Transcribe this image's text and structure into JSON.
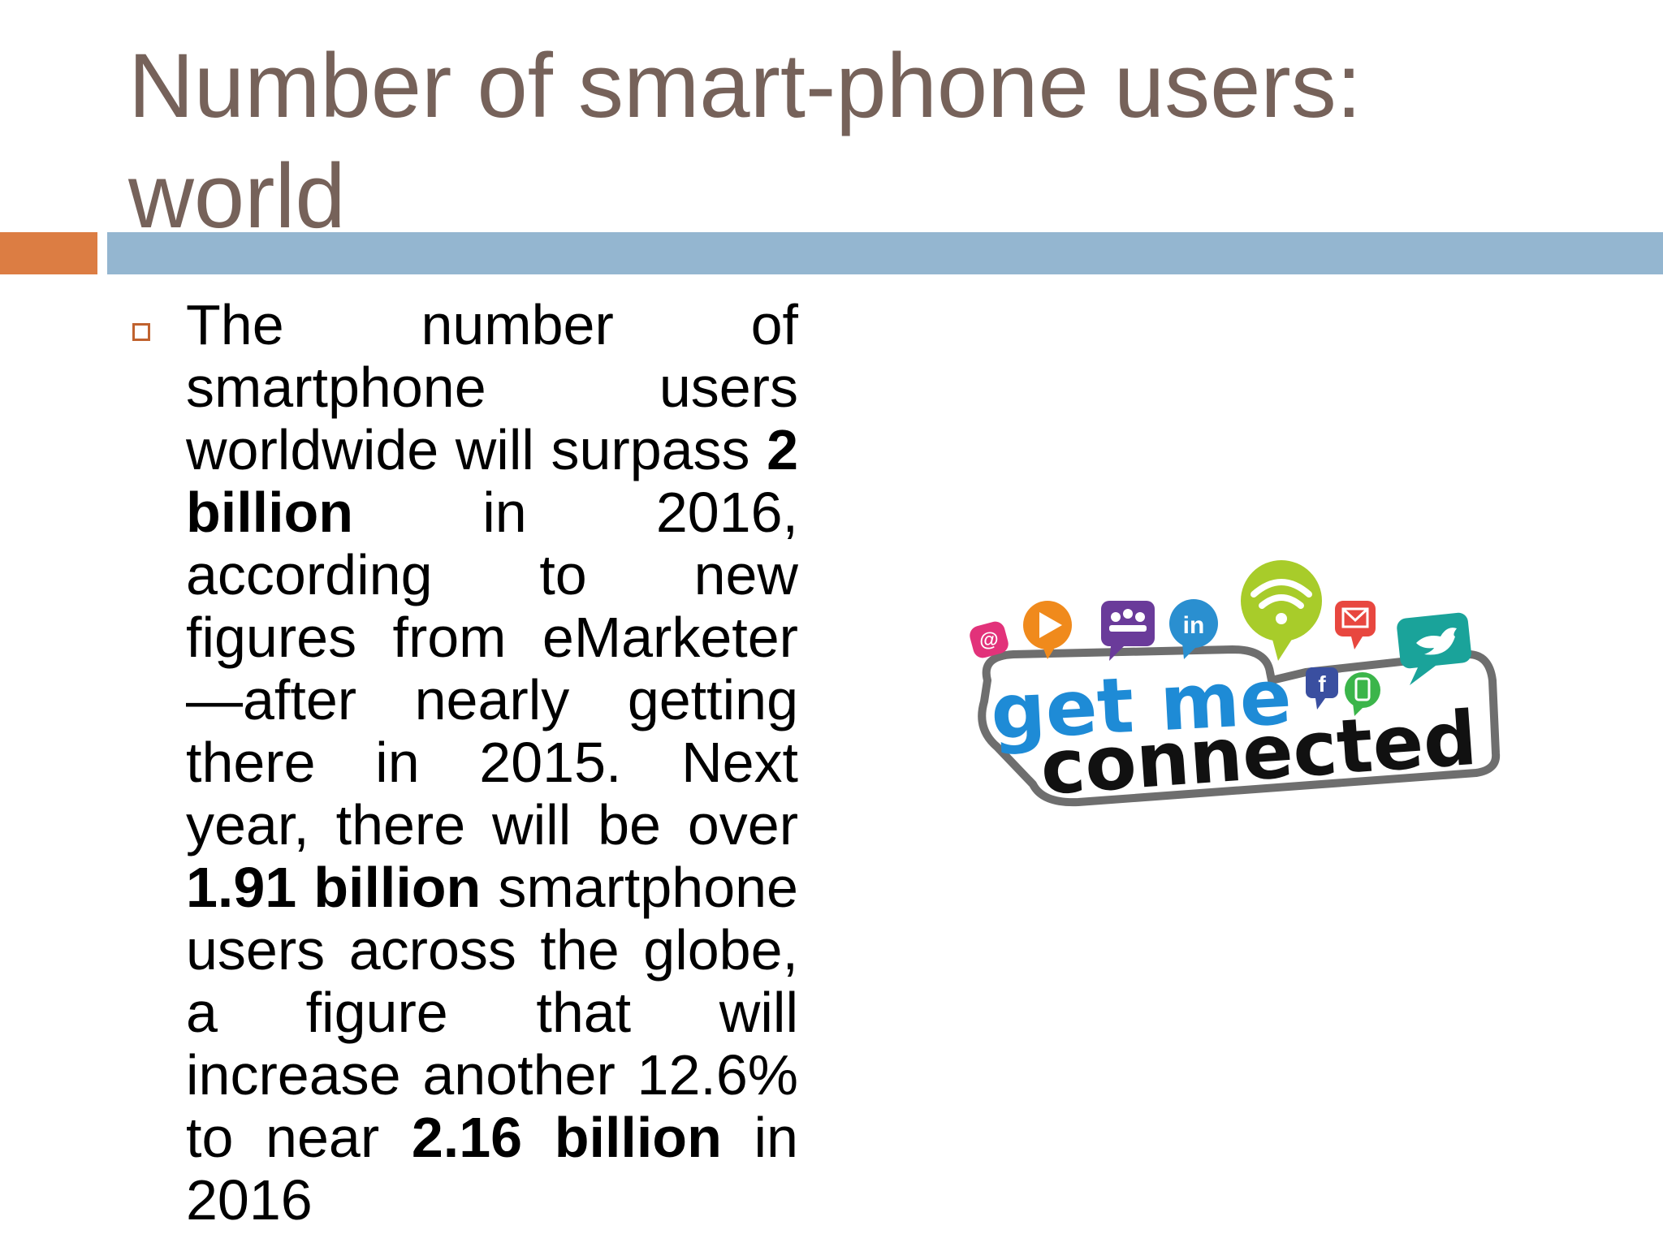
{
  "slide": {
    "title": "Number of smart-phone users: world",
    "bullet": {
      "seg1": "The number of smartphone users worldwide will surpass ",
      "bold1": "2 billion",
      "seg2": " in 2016, according to new figures from eMarketer—after nearly getting there in 2015. Next year, there will be over ",
      "bold2": "1.91 billion",
      "seg3": " smartphone users across the globe, a figure that will increase another 12.6% to near ",
      "bold3": "2.16 billion",
      "seg4": " in 2016"
    }
  },
  "logo": {
    "line1": "get me",
    "line2": "connected",
    "icons": [
      "at-icon",
      "play-icon",
      "people-icon",
      "linkedin-icon",
      "wifi-icon",
      "mail-icon",
      "twitter-icon",
      "facebook-icon",
      "phone-icon"
    ],
    "colors": {
      "at": "#e2327a",
      "play": "#f08a1c",
      "people": "#6a3b9a",
      "linkedin": "#2a8fd0",
      "wifi": "#a8cc2a",
      "mail": "#e8473f",
      "twitter": "#1aa39a",
      "facebook": "#3a4fa0",
      "phone": "#3bb54a",
      "getme": "#1e8bd6",
      "connected": "#111111",
      "outline": "#6e6e6e"
    }
  }
}
